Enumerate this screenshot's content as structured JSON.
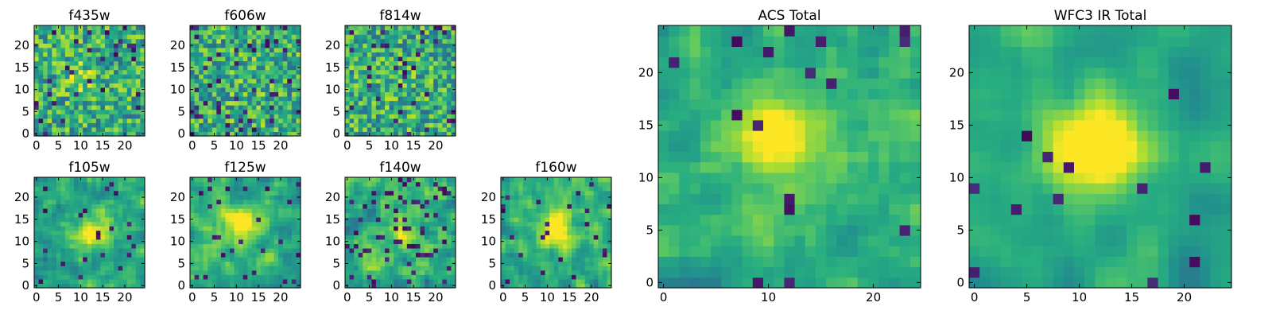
{
  "figure": {
    "background": "#ffffff",
    "colormap": "viridis"
  },
  "chart_data": [
    {
      "type": "heatmap",
      "title": "f435w",
      "grid_size": 25,
      "seed": 11,
      "smooth": 0,
      "hot_x": 10,
      "hot_y": 13,
      "hot_amp": 0.15,
      "noise": 1.0,
      "dark_frac": 0.05,
      "xticks": [
        0,
        5,
        10,
        15,
        20
      ],
      "yticks": [
        0,
        5,
        10,
        15,
        20
      ],
      "xlim": [
        0,
        24
      ],
      "ylim": [
        0,
        24
      ],
      "grid": false,
      "legend": "none"
    },
    {
      "type": "heatmap",
      "title": "f606w",
      "grid_size": 25,
      "seed": 23,
      "smooth": 0,
      "hot_x": 12,
      "hot_y": 12,
      "hot_amp": 0.05,
      "noise": 1.0,
      "dark_frac": 0.06,
      "xticks": [
        0,
        5,
        10,
        15,
        20
      ],
      "yticks": [
        0,
        5,
        10,
        15,
        20
      ],
      "xlim": [
        0,
        24
      ],
      "ylim": [
        0,
        24
      ],
      "grid": false,
      "legend": "none"
    },
    {
      "type": "heatmap",
      "title": "f814w",
      "grid_size": 25,
      "seed": 37,
      "smooth": 0,
      "hot_x": 12,
      "hot_y": 12,
      "hot_amp": 0.05,
      "noise": 1.0,
      "dark_frac": 0.06,
      "xticks": [
        0,
        5,
        10,
        15,
        20
      ],
      "yticks": [
        0,
        5,
        10,
        15,
        20
      ],
      "xlim": [
        0,
        24
      ],
      "ylim": [
        0,
        24
      ],
      "grid": false,
      "legend": "none"
    },
    {
      "type": "heatmap",
      "title": "f105w",
      "grid_size": 25,
      "seed": 41,
      "smooth": 1,
      "hot_x": 13,
      "hot_y": 12,
      "hot_amp": 0.45,
      "noise": 0.8,
      "dark_frac": 0.04,
      "xticks": [
        0,
        5,
        10,
        15,
        20
      ],
      "yticks": [
        0,
        5,
        10,
        15,
        20
      ],
      "xlim": [
        0,
        24
      ],
      "ylim": [
        0,
        24
      ],
      "grid": false,
      "legend": "none"
    },
    {
      "type": "heatmap",
      "title": "f125w",
      "grid_size": 25,
      "seed": 53,
      "smooth": 1,
      "hot_x": 11,
      "hot_y": 14,
      "hot_amp": 0.4,
      "noise": 0.85,
      "dark_frac": 0.05,
      "xticks": [
        0,
        5,
        10,
        15,
        20
      ],
      "yticks": [
        0,
        5,
        10,
        15,
        20
      ],
      "xlim": [
        0,
        24
      ],
      "ylim": [
        0,
        24
      ],
      "grid": false,
      "legend": "none"
    },
    {
      "type": "heatmap",
      "title": "f140w",
      "grid_size": 25,
      "seed": 67,
      "smooth": 1,
      "hot_x": 12,
      "hot_y": 13,
      "hot_amp": 0.2,
      "noise": 1.0,
      "dark_frac": 0.08,
      "xticks": [
        0,
        5,
        10,
        15,
        20
      ],
      "yticks": [
        0,
        5,
        10,
        15,
        20
      ],
      "xlim": [
        0,
        24
      ],
      "ylim": [
        0,
        24
      ],
      "grid": false,
      "legend": "none"
    },
    {
      "type": "heatmap",
      "title": "f160w",
      "grid_size": 25,
      "seed": 79,
      "smooth": 1,
      "hot_x": 12,
      "hot_y": 13,
      "hot_amp": 0.5,
      "noise": 0.85,
      "dark_frac": 0.05,
      "xticks": [
        0,
        5,
        10,
        15,
        20
      ],
      "yticks": [
        0,
        5,
        10,
        15,
        20
      ],
      "xlim": [
        0,
        24
      ],
      "ylim": [
        0,
        24
      ],
      "grid": false,
      "legend": "none"
    },
    {
      "type": "heatmap",
      "title": "ACS Total",
      "grid_size": 25,
      "seed": 97,
      "smooth": 1,
      "hot_x": 11,
      "hot_y": 14,
      "hot_amp": 0.4,
      "noise": 0.7,
      "dark_frac": 0.03,
      "xticks": [
        0,
        10,
        20
      ],
      "yticks": [
        0,
        5,
        10,
        15,
        20
      ],
      "xlim": [
        0,
        24
      ],
      "ylim": [
        0,
        24
      ],
      "grid": false,
      "legend": "none"
    },
    {
      "type": "heatmap",
      "title": "WFC3 IR Total",
      "grid_size": 25,
      "seed": 131,
      "smooth": 2,
      "hot_x": 12,
      "hot_y": 13,
      "hot_amp": 0.7,
      "noise": 0.6,
      "dark_frac": 0.03,
      "xticks": [
        0,
        5,
        10,
        15,
        20
      ],
      "yticks": [
        0,
        5,
        10,
        15,
        20
      ],
      "xlim": [
        0,
        24
      ],
      "ylim": [
        0,
        24
      ],
      "grid": false,
      "legend": "none"
    }
  ]
}
